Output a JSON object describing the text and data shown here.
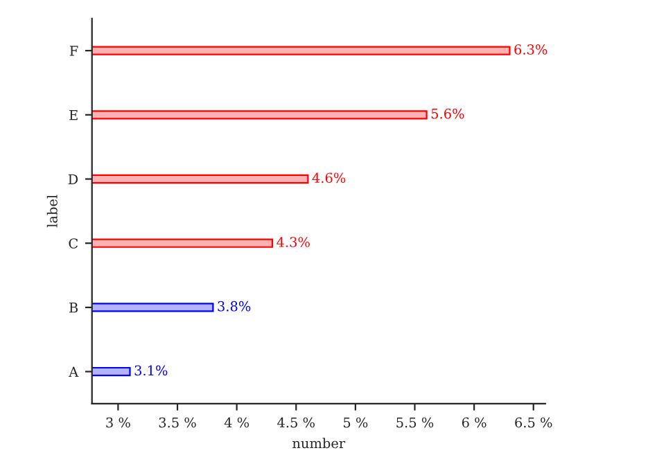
{
  "chart_data": {
    "type": "bar",
    "orientation": "horizontal",
    "xlabel": "number",
    "ylabel": "label",
    "categories": [
      "F",
      "E",
      "D",
      "C",
      "B",
      "A"
    ],
    "values": [
      6.3,
      5.6,
      4.6,
      4.3,
      3.8,
      3.1
    ],
    "colors": [
      "#ff0000",
      "#ff0000",
      "#ff0000",
      "#ff0000",
      "#0000ff",
      "#0000ff"
    ],
    "value_labels": [
      "6.3%",
      "5.6%",
      "4.6%",
      "4.3%",
      "3.8%",
      "3.1%"
    ],
    "xlim": [
      2.78,
      6.6
    ],
    "xticks": [
      {
        "value": 3,
        "label": "3 %"
      },
      {
        "value": 3.5,
        "label": "3.5 %"
      },
      {
        "value": 4,
        "label": "4 %"
      },
      {
        "value": 4.5,
        "label": "4.5 %"
      },
      {
        "value": 5,
        "label": "5 %"
      },
      {
        "value": 5.5,
        "label": "5.5 %"
      },
      {
        "value": 6,
        "label": "6 %"
      },
      {
        "value": 6.5,
        "label": "6.5 %"
      }
    ],
    "grid": false,
    "legend": false
  }
}
